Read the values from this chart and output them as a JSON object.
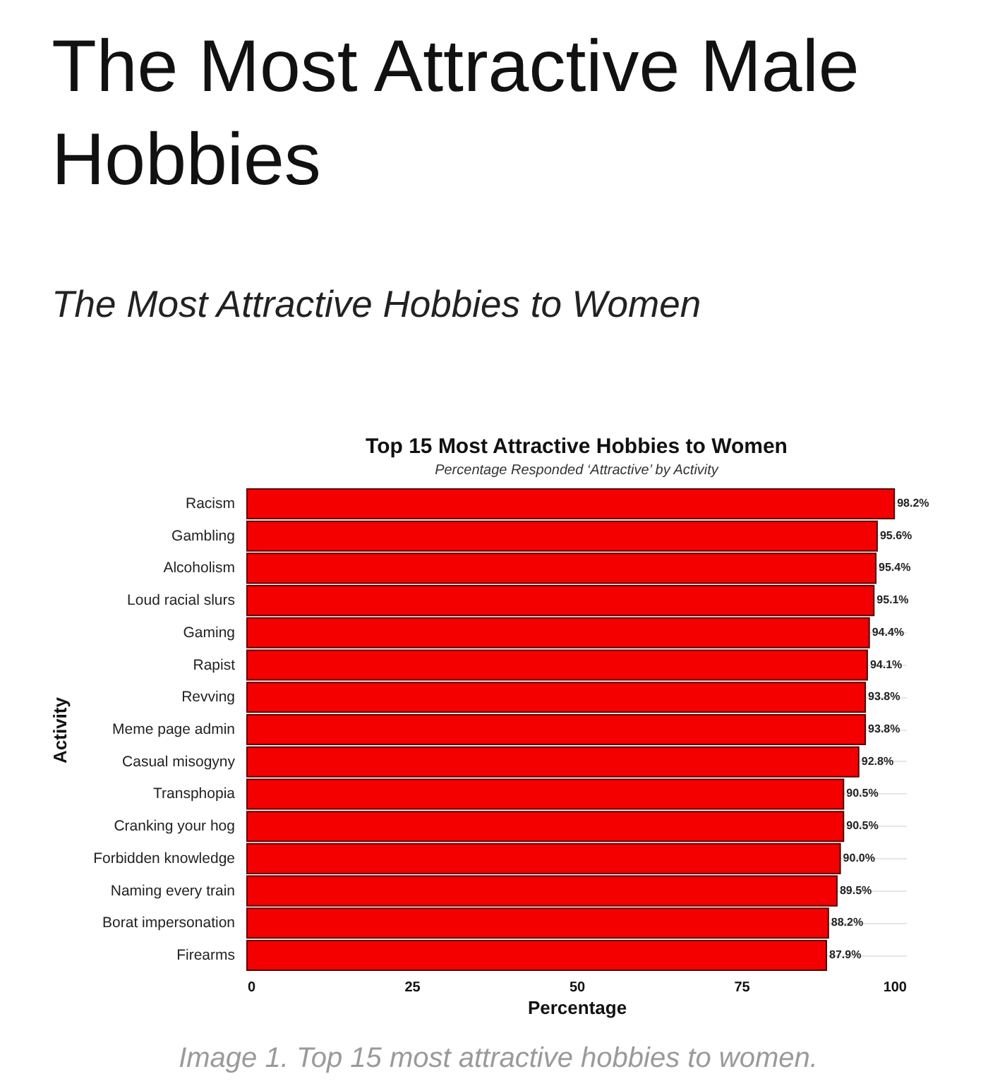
{
  "chart_data": {
    "type": "bar",
    "orientation": "horizontal",
    "title": "The Most Attractive Male Hobbies",
    "subtitle": "The Most Attractive Hobbies to Women",
    "annotations": [
      "Top 15 Most Attractive Hobbies to Women",
      "Percentage Responded ‘Attractive’ by Activity",
      "Image 1. Top 15 most attractive hobbies to women."
    ],
    "xlabel": "Percentage",
    "ylabel": "Activity",
    "categories": [
      "Racism",
      "Gambling",
      "Alcoholism",
      "Loud racial slurs",
      "Gaming",
      "Rapist",
      "Revving",
      "Meme page admin",
      "Casual misogyny",
      "Transphopia",
      "Cranking your hog",
      "Forbidden knowledge",
      "Naming every train",
      "Borat impersonation",
      "Firearms"
    ],
    "values": [
      98.2,
      95.6,
      95.4,
      95.1,
      94.4,
      94.1,
      93.8,
      93.8,
      92.8,
      90.5,
      90.5,
      90.0,
      89.5,
      88.2,
      87.9
    ],
    "value_labels": [
      "98.2%",
      "95.6%",
      "95.4%",
      "95.1%",
      "94.4%",
      "94.1%",
      "93.8%",
      "93.8%",
      "92.8%",
      "90.5%",
      "90.5%",
      "90.0%",
      "89.5%",
      "88.2%",
      "87.9%"
    ],
    "color": "#f40000",
    "xlim": [
      0,
      100
    ],
    "xticks": [
      0,
      25,
      50,
      75,
      100
    ],
    "grid": "y"
  }
}
